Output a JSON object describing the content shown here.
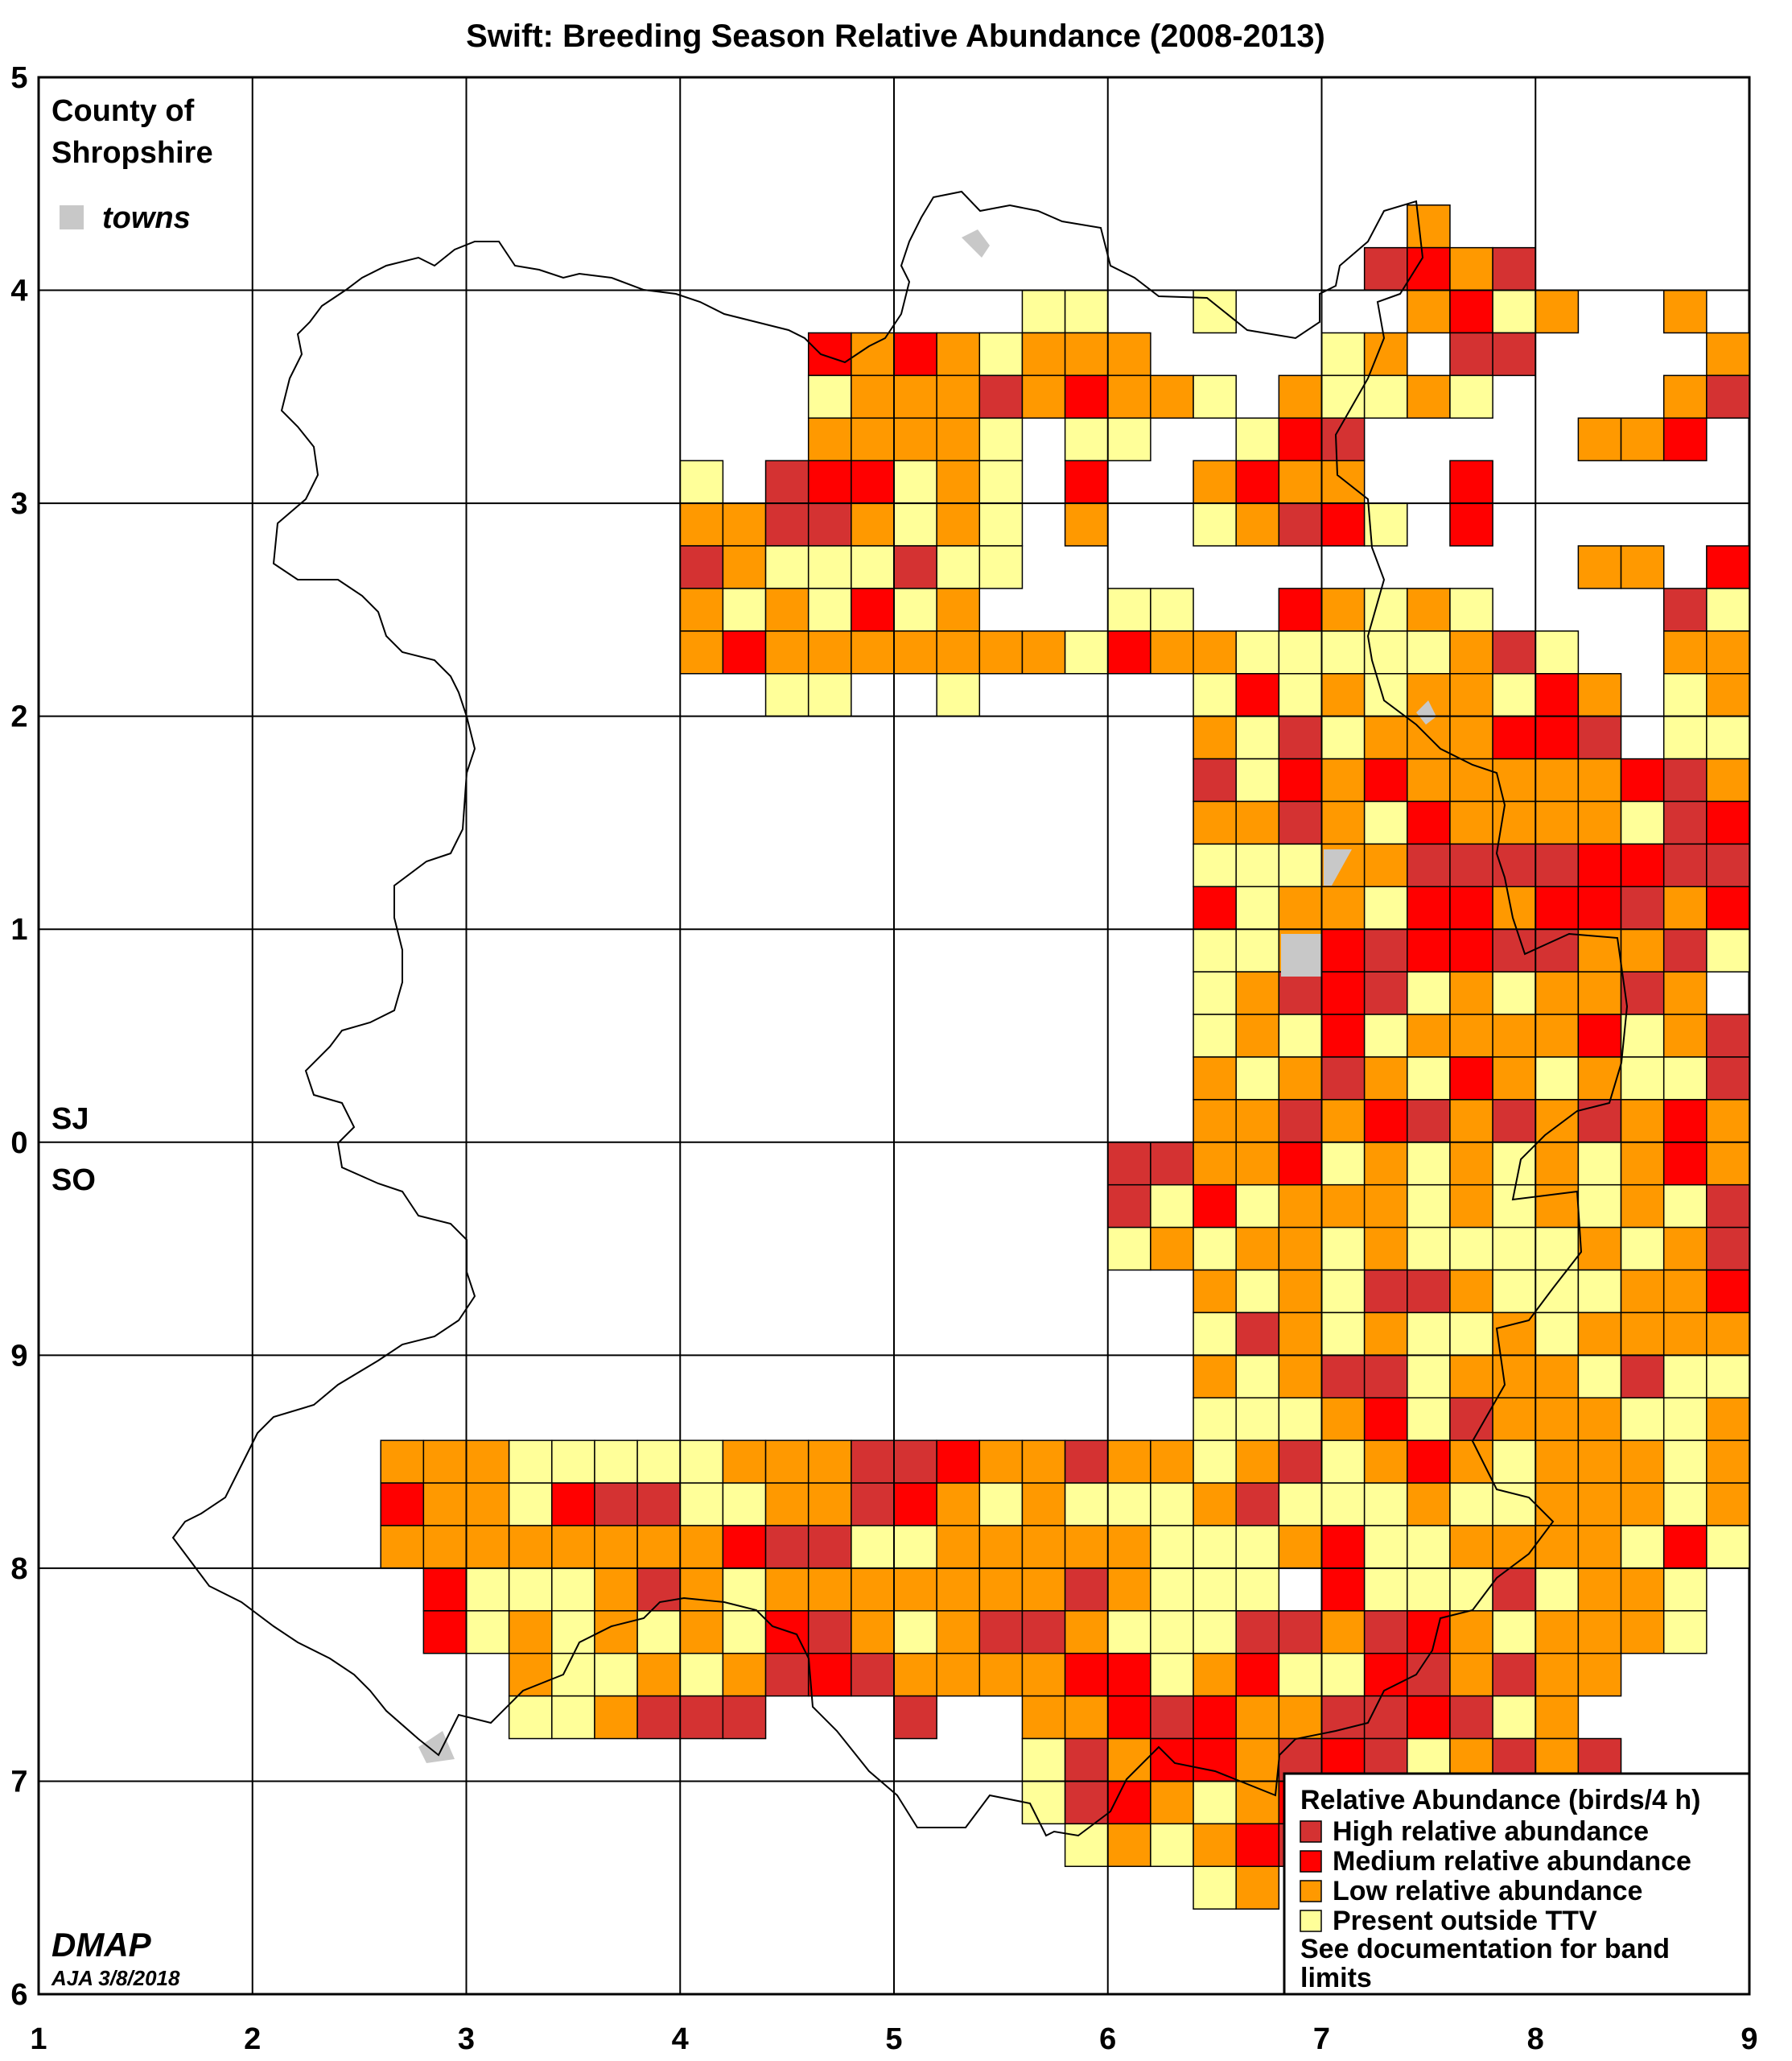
{
  "title": "Swift: Breeding Season Relative Abundance (2008-2013)",
  "map": {
    "county_label_line1": "County of",
    "county_label_line2": "Shropshire",
    "towns_label": "towns",
    "grid_label_north": "SJ",
    "grid_label_south": "SO",
    "x_ticks": [
      "1",
      "2",
      "3",
      "4",
      "5",
      "6",
      "7",
      "8",
      "9"
    ],
    "y_ticks": [
      "6",
      "7",
      "8",
      "9",
      "0",
      "1",
      "2",
      "3",
      "4",
      "5"
    ],
    "credit_org": "DMAP",
    "credit_author": "AJA 3/8/2018"
  },
  "legend": {
    "title": "Relative Abundance (birds/4 h)",
    "items": [
      {
        "label": "High relative abundance",
        "color": "#d43232"
      },
      {
        "label": "Medium relative abundance",
        "color": "#ff0000"
      },
      {
        "label": "Low relative abundance",
        "color": "#ff9900"
      },
      {
        "label": "Present outside TTV",
        "color": "#ffff99"
      }
    ],
    "note_line1": "See documentation for band",
    "note_line2": "limits"
  },
  "colors": {
    "H": "#d43232",
    "M": "#ff0000",
    "L": "#ff9900",
    "P": "#ffff99",
    "town": "#c8c8c8"
  },
  "chart_data": {
    "type": "heatmap",
    "cell_size_km": 2,
    "rows_from_north": [
      "................................L..............L..",
      "...............................HMLH............P...",
      ".......................PP..P....LMPL..L..........",
      "..................MLMLPLLL....PL.HH....L.........",
      "..................PLLLHLMLLP.LPPLP....LHL........",
      "..................LLLLP.PP..PMH.....LLM.........",
      "...............P.HMMPLP.M..LMLL..M...............",
      "...............LLHHLPLP.L..PLHMP.M........P......",
      "...............HLPPPHPP.............LL.M..L.......",
      "...............LPLPMPL...PP..MLPLP....HPLPP.......",
      "...............LMLLLLLLLPMLLPPPPPLHP..LLLPPM......",
      ".................PP..P.....PMPLPLLPML.PLLLPLL.....",
      "...........................LPHPLLLMMH.PPLLLLLLH...",
      "...........................HPMLMLLLLLMHL.LLLLLLPP...",
      "...........................LLHLPMLLLLPHMMHMLHHPP...",
      "...........................PPPLLHHHHMMHHMHHHHHLPHH..",
      "...........................MPLLPMMLMMHLMHHHMPPMPMLLL..",
      "...........................PPLMHMMHHLLHP.LLLPMLPMLLPP.",
      "...........................PLHMHPLPLLHL.LPLPLLMLMPMLLP.",
      "...........................PLPMPLLLLMPLHHLLPLPLLHPPLP.",
      "...........................LPLHLPMLPLPPHMPLLLMPHLLPLH.",
      "...........................LLHLMHLHLHLMLHLHHLLLLHMLPLPP.",
      ".........................HHLLMPLPLPLPLMLMLHPMHLHMLHPL...",
      ".........................HPMPLLLPLPLPLPHPLHLHPLHMMHPHM...",
      ".........................PLPLLPLPPPPLPLHPPHLPLPHHPHMM...",
      "...........................LPLPHHLPPPLLMMHHHPLLPMPHLHPMH...",
      "...........................PHLPLPPLPLLLLLLLPLHMPLPPHML...",
      "...........................LPLHHPLLLPHPPLLLPHMPPHLPLH..",
      "...........................PPPLMPHLLLPPLLLHPPLPLPMLPLPP",
      "........LLLPPPPPLLLHHMLLHLLPLHPLMLPLLLPLLPHLL.",
      "........MLLPMHHPPLLHMLPLPPPLHPPPLPPLLLPLMLPH..",
      "........LLLLLLLLMHHPPLLLLLPPPLMPPLLLLPMPPLP...",
      ".........MPPPLHLPLLLLLLLHLPPP.MPPPHPLLP.LP....",
      ".........MPLPLPLPMHLPLHHLPPPHHLHMLPLLLP......",
      "...........LPPLPLHMHLLLLMMPLMPPMHLHLL.......",
      "...........PPLHHH...H..LLMHMLLHHMHPL........",
      ".......................PHLMMLHMHPLHLH.......",
      ".......................PHMLPLMPPMPM.........",
      "........................PLPLMHHLMPPH.........",
      "...........................PL.HMMH..L........"
    ]
  }
}
